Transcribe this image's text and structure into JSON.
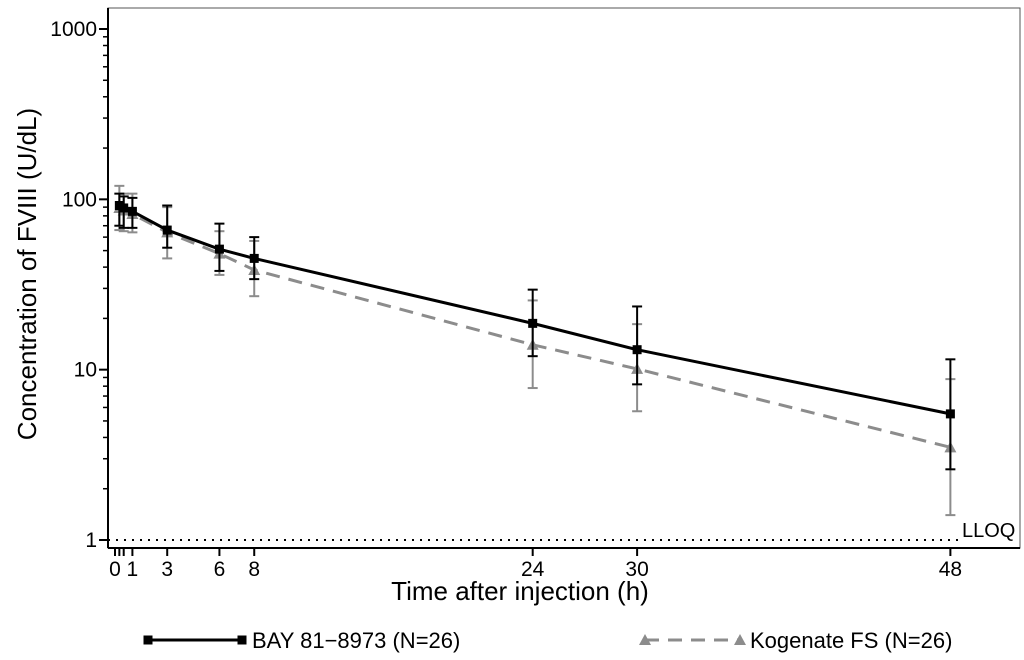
{
  "chart_data": {
    "type": "line",
    "title": "",
    "xlabel": "Time after injection (h)",
    "ylabel": "Concentration of FVIII (U/dL)",
    "y_scale": "log",
    "xlim": [
      0,
      52
    ],
    "ylim": [
      1,
      1300
    ],
    "x_ticks": [
      0,
      1,
      3,
      6,
      8,
      24,
      30,
      48
    ],
    "x_tick_labels": [
      "0",
      "1",
      "3",
      "6",
      "8",
      "24",
      "30",
      "48"
    ],
    "x_minor_ticks": [
      0.25,
      0.5
    ],
    "y_ticks": [
      1,
      10,
      100,
      1000
    ],
    "y_tick_labels": [
      "1",
      "10",
      "100",
      "1000"
    ],
    "grid": false,
    "legend_position": "bottom",
    "reference_line": {
      "value": 1,
      "label": "LLOQ",
      "style": "dotted"
    },
    "series": [
      {
        "name": "BAY 81−8973 (N=26)",
        "color": "#000000",
        "line_style": "solid",
        "marker": "square",
        "x": [
          0.25,
          0.5,
          1,
          3,
          6,
          8,
          24,
          30,
          48
        ],
        "y": [
          92,
          89,
          85,
          66,
          51,
          45,
          18.7,
          13.1,
          5.5
        ],
        "err_low": [
          70,
          68,
          68,
          52,
          38,
          34,
          12,
          8.2,
          2.6
        ],
        "err_high": [
          108,
          104,
          102,
          92,
          72,
          60,
          29.5,
          23.5,
          11.5
        ]
      },
      {
        "name": "Kogenate FS (N=26)",
        "color": "#8c8c8c",
        "line_style": "dashed",
        "marker": "triangle",
        "x": [
          0.25,
          0.5,
          1,
          3,
          6,
          8,
          24,
          30,
          48
        ],
        "y": [
          89,
          86,
          82,
          64,
          48,
          38.5,
          14,
          10.1,
          3.5
        ],
        "err_low": [
          66,
          65,
          64,
          45,
          36,
          27,
          7.8,
          5.7,
          1.4
        ],
        "err_high": [
          120,
          108,
          108,
          90,
          65,
          57,
          25.5,
          18.5,
          8.8
        ]
      }
    ]
  }
}
